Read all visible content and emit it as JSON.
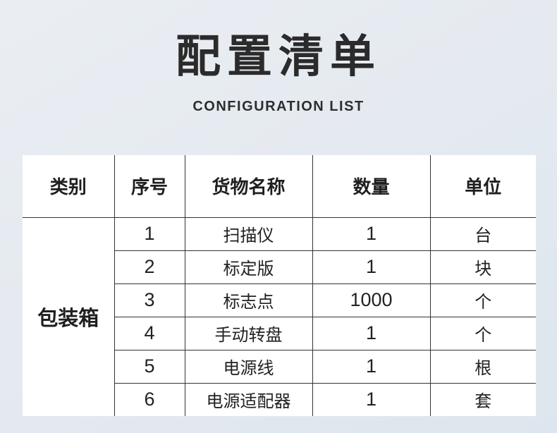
{
  "page": {
    "title": "配置清单",
    "subtitle": "CONFIGURATION LIST"
  },
  "table": {
    "headers": [
      "类别",
      "序号",
      "货物名称",
      "数量",
      "单位"
    ],
    "category": "包装箱",
    "rows": [
      {
        "no": "1",
        "name": "扫描仪",
        "qty": "1",
        "unit": "台"
      },
      {
        "no": "2",
        "name": "标定版",
        "qty": "1",
        "unit": "块"
      },
      {
        "no": "3",
        "name": "标志点",
        "qty": "1000",
        "unit": "个"
      },
      {
        "no": "4",
        "name": "手动转盘",
        "qty": "1",
        "unit": "个"
      },
      {
        "no": "5",
        "name": "电源线",
        "qty": "1",
        "unit": "根"
      },
      {
        "no": "6",
        "name": "电源适配器",
        "qty": "1",
        "unit": "套"
      }
    ]
  },
  "colors": {
    "background_top": "#eaeef3",
    "background_bottom": "#dde6ee",
    "cell_background": "#ffffff",
    "grid_line": "#333333",
    "text": "#2b2b2b"
  }
}
